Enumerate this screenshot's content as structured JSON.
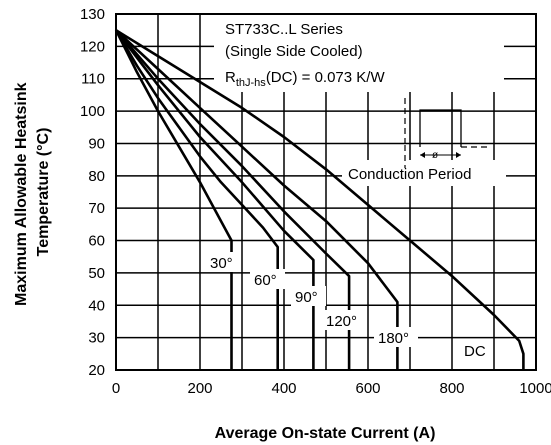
{
  "chart_data": {
    "type": "line",
    "xlabel": "Average On-state Current (A)",
    "ylabel_line1": "Maximum Allowable Heatsink",
    "ylabel_line2": "Temperature (°C)",
    "xlim": [
      0,
      1000
    ],
    "ylim": [
      20,
      130
    ],
    "x_ticks": [
      "0",
      "200",
      "400",
      "600",
      "800",
      "1000"
    ],
    "y_ticks": [
      "20",
      "30",
      "40",
      "50",
      "60",
      "70",
      "80",
      "90",
      "100",
      "110",
      "120",
      "130"
    ],
    "grid": true,
    "annotations": {
      "series_title": "ST733C..L Series",
      "cooling": "(Single Side Cooled)",
      "rth_prefix": "R",
      "rth_sub": "thJ-hs",
      "rth_suffix": "(DC) = 0.073 K/W",
      "conduction_period": "Conduction Period",
      "phi_symbol": "ø"
    },
    "series": [
      {
        "name": "30°",
        "points": [
          [
            0,
            125
          ],
          [
            50,
            112
          ],
          [
            100,
            100
          ],
          [
            150,
            89
          ],
          [
            200,
            78
          ],
          [
            250,
            66
          ],
          [
            275,
            60
          ],
          [
            275,
            20
          ]
        ]
      },
      {
        "name": "60°",
        "points": [
          [
            0,
            125
          ],
          [
            50,
            114
          ],
          [
            100,
            104
          ],
          [
            150,
            95
          ],
          [
            200,
            86
          ],
          [
            250,
            78
          ],
          [
            300,
            71
          ],
          [
            350,
            64
          ],
          [
            385,
            58
          ],
          [
            385,
            20
          ]
        ]
      },
      {
        "name": "90°",
        "points": [
          [
            0,
            125
          ],
          [
            100,
            108
          ],
          [
            200,
            92
          ],
          [
            300,
            78
          ],
          [
            400,
            63
          ],
          [
            470,
            54
          ],
          [
            470,
            20
          ]
        ]
      },
      {
        "name": "120°",
        "points": [
          [
            0,
            125
          ],
          [
            100,
            110
          ],
          [
            200,
            96
          ],
          [
            300,
            83
          ],
          [
            400,
            69
          ],
          [
            500,
            56
          ],
          [
            555,
            49
          ],
          [
            555,
            20
          ]
        ]
      },
      {
        "name": "180°",
        "points": [
          [
            0,
            125
          ],
          [
            100,
            113
          ],
          [
            200,
            101
          ],
          [
            300,
            89
          ],
          [
            400,
            77
          ],
          [
            500,
            66
          ],
          [
            600,
            53
          ],
          [
            670,
            41
          ],
          [
            670,
            20
          ]
        ]
      },
      {
        "name": "DC",
        "points": [
          [
            0,
            125
          ],
          [
            100,
            117
          ],
          [
            200,
            109
          ],
          [
            300,
            101
          ],
          [
            400,
            92
          ],
          [
            500,
            82
          ],
          [
            600,
            71
          ],
          [
            700,
            60
          ],
          [
            800,
            49
          ],
          [
            900,
            37
          ],
          [
            960,
            29
          ],
          [
            970,
            25
          ],
          [
            970,
            20
          ]
        ]
      }
    ]
  }
}
